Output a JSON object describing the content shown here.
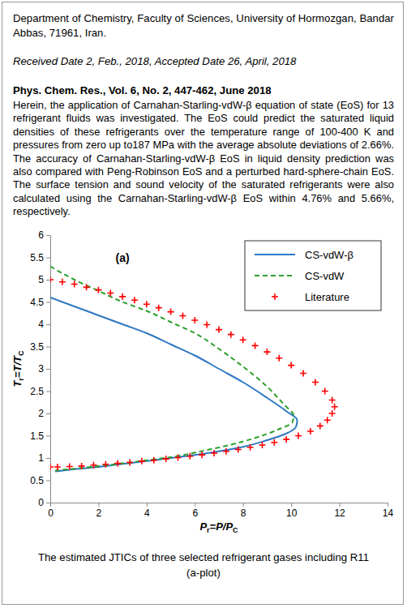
{
  "header": {
    "affiliation": "Department of Chemistry, Faculty of Sciences, University of Hormozgan, Bandar Abbas, 71961, Iran.",
    "dates": "Received Date 2, Feb., 2018, Accepted Date 26, April, 2018",
    "citation": "Phys. Chem. Res., Vol. 6, No. 2, 447-462, June 2018",
    "abstract": "Herein, the application of Carnahan-Starling-vdW-β equation of state (EoS) for 13 refrigerant fluids was investigated. The EoS could predict the saturated liquid densities of these refrigerants over the temperature range of 100-400 K and pressures from zero up to187 MPa with the average absolute deviations of 2.66%. The accuracy of Carnahan-Starling-vdW-β EoS in liquid density prediction was also compared with Peng-Robinson EoS and a perturbed hard-sphere-chain EoS. The surface tension and sound velocity of the saturated refrigerants were also calculated using the Carnahan-Starling-vdW-β EoS within 4.76% and 5.66%, respectively."
  },
  "chart_data": {
    "type": "line",
    "xlabel": [
      "P",
      "r",
      "=P/P",
      "C"
    ],
    "ylabel": [
      "T",
      "r",
      "=T/T",
      "C"
    ],
    "xlim": [
      0,
      14
    ],
    "xticks": [
      0,
      2,
      4,
      6,
      8,
      10,
      12,
      14
    ],
    "ylim": [
      0,
      6
    ],
    "yticks": [
      0,
      0.5,
      1,
      1.5,
      2,
      2.5,
      3,
      3.5,
      4,
      4.5,
      5,
      5.5,
      6
    ],
    "grid": false,
    "legend": "upper right",
    "annotations": [
      {
        "text": "(a)",
        "x": 3.0,
        "y": 5.4
      }
    ],
    "series": [
      {
        "name": "CS-vdW-β",
        "type": "line",
        "color": "#2e78c2",
        "line_style": "solid",
        "x": [
          0,
          1,
          2,
          3,
          4,
          5,
          6,
          7,
          8,
          9,
          9.8,
          10.25,
          10.2,
          9.8,
          9,
          8,
          7,
          6,
          5,
          4,
          3,
          2,
          1,
          0.2
        ],
        "values": [
          4.6,
          4.4,
          4.2,
          4.0,
          3.8,
          3.55,
          3.3,
          3.0,
          2.7,
          2.35,
          2.05,
          1.85,
          1.7,
          1.55,
          1.4,
          1.25,
          1.15,
          1.07,
          1.0,
          0.93,
          0.87,
          0.8,
          0.75,
          0.7
        ]
      },
      {
        "name": "CS-vdW",
        "type": "line",
        "color": "#2ca02c",
        "line_style": "dashed",
        "x": [
          0,
          1,
          2,
          3,
          4,
          5,
          6,
          7,
          8,
          9,
          9.7,
          10.1,
          10.05,
          9.5,
          8.5,
          7.5,
          6.5,
          5,
          4,
          3,
          2,
          1,
          0.2
        ],
        "values": [
          5.3,
          5.0,
          4.75,
          4.5,
          4.3,
          4.05,
          3.8,
          3.45,
          3.05,
          2.6,
          2.2,
          1.95,
          1.8,
          1.65,
          1.45,
          1.3,
          1.18,
          1.02,
          0.95,
          0.88,
          0.82,
          0.76,
          0.72
        ]
      },
      {
        "name": "Literature",
        "type": "scatter",
        "color": "#ff0000",
        "marker": "plus",
        "x": [
          0,
          0.5,
          1,
          1.5,
          2,
          2.5,
          3,
          3.5,
          4,
          4.5,
          5,
          5.5,
          6,
          6.5,
          7,
          7.5,
          8,
          8.5,
          9,
          9.5,
          10,
          10.5,
          11,
          11.4,
          11.7,
          11.8,
          11.7,
          11.5,
          11.2,
          10.8,
          10.3,
          9.8,
          9.3,
          8.8,
          8.3,
          7.8,
          7.3,
          6.8,
          6.3,
          5.8,
          5.3,
          4.8,
          4.3,
          3.8,
          3.3,
          2.8,
          2.3,
          1.8,
          1.3,
          0.8,
          0.3,
          0
        ],
        "values": [
          5.0,
          4.95,
          4.9,
          4.83,
          4.77,
          4.7,
          4.62,
          4.54,
          4.45,
          4.37,
          4.28,
          4.19,
          4.09,
          3.99,
          3.88,
          3.77,
          3.65,
          3.52,
          3.38,
          3.24,
          3.08,
          2.9,
          2.7,
          2.5,
          2.3,
          2.15,
          2.0,
          1.85,
          1.72,
          1.6,
          1.5,
          1.42,
          1.35,
          1.29,
          1.24,
          1.19,
          1.15,
          1.11,
          1.07,
          1.04,
          1.01,
          0.98,
          0.95,
          0.93,
          0.9,
          0.88,
          0.86,
          0.84,
          0.82,
          0.81,
          0.8,
          0.8
        ]
      }
    ]
  },
  "caption": [
    "The estimated JTICs of three selected refrigerant gases including R11",
    "(a-plot)"
  ]
}
